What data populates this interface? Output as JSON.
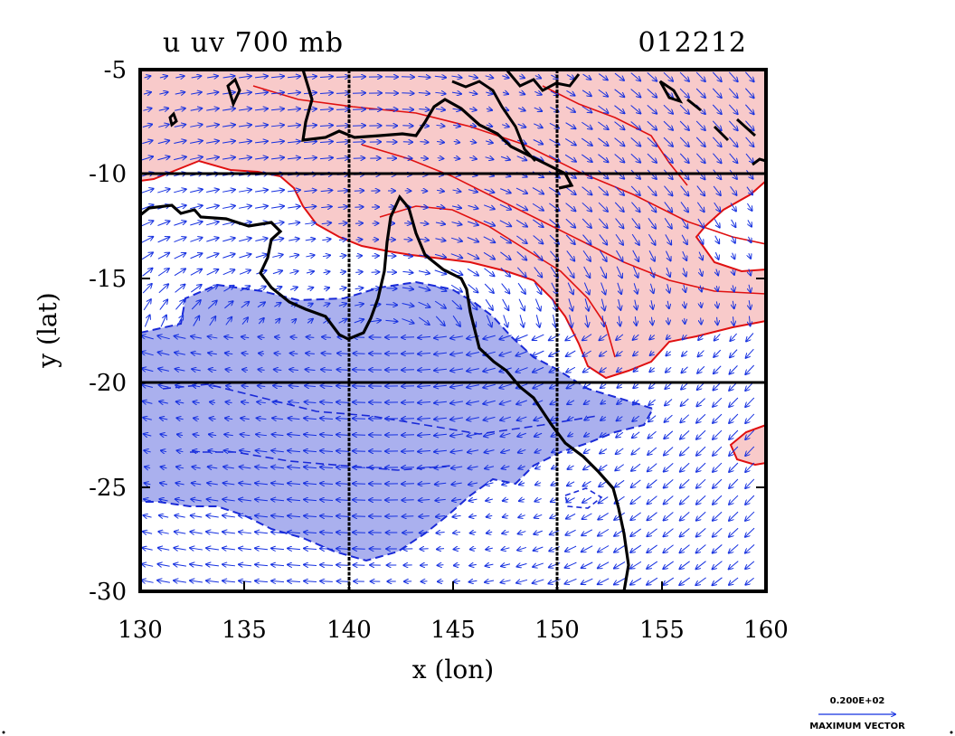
{
  "plot": {
    "title_left": "u  uv 700 mb",
    "title_right": "012212",
    "xlabel": "x (lon)",
    "ylabel": "y (lat)"
  },
  "chart_data": {
    "type": "contour",
    "projection": "lat-lon map",
    "variable": "u wind component with uv wind vectors at 700 mb",
    "xlim": [
      130,
      160
    ],
    "ylim": [
      -30,
      -5
    ],
    "x_ticks": [
      "130",
      "135",
      "140",
      "145",
      "150",
      "155",
      "160"
    ],
    "y_ticks": [
      "-5",
      "-10",
      "-15",
      "-20",
      "-25",
      "-30"
    ],
    "x_tick_values": [
      130,
      135,
      140,
      145,
      150,
      155,
      160
    ],
    "y_tick_values": [
      -5,
      -10,
      -15,
      -20,
      -25,
      -30
    ],
    "grid_lines_lon": [
      140,
      150
    ],
    "grid_lines_lat": [
      -10,
      -20
    ],
    "positive_fill_color": "#f8caca",
    "positive_contour_color": "#e01010",
    "negative_fill_color": "#aab0ee",
    "negative_contour_color": "#1a2ad8",
    "vector_color": "#1530e0",
    "coastline_color": "#000000"
  },
  "reference_vector": {
    "value_label": "0.200E+02",
    "caption": "MAXIMUM VECTOR"
  }
}
